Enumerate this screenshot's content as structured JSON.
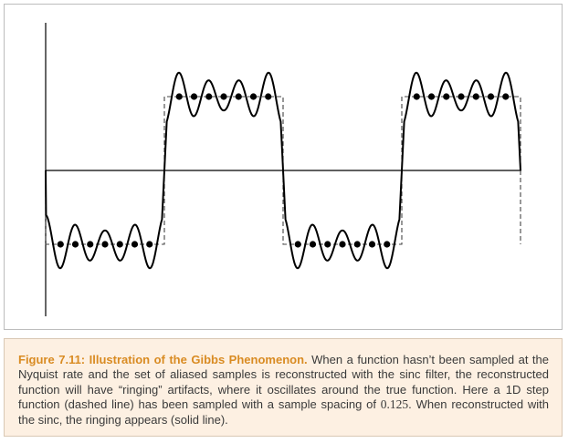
{
  "figure": {
    "description_role": "Gibbs phenomenon illustration: dashed 1D step function, sample dots at spacing 0.125, solid sinc-reconstructed curve with ringing",
    "step_function": {
      "high": 1,
      "low": -1,
      "period": 2,
      "sample_spacing": 0.125,
      "x_range": [
        0,
        4
      ]
    },
    "styles": {
      "axis_color": "#000000",
      "step_dash": "5,3",
      "dot_color": "#000000"
    }
  },
  "caption": {
    "label": "Figure 7.11: Illustration of the Gibbs Phenomenon.",
    "text_1": " When a function hasn’t been sampled at the Nyquist rate and the set of aliased samples is reconstructed with the sinc filter, the reconstructed function will have “ringing” artifacts, where it oscillates around the true function. Here a 1D step function (dashed line) has been sampled with a sample spacing of ",
    "spacing_value": "0.125",
    "text_2": ". When reconstructed with the sinc, the ringing appears (solid line).",
    "label_color": "#d98b22",
    "background_color": "#fdf0e2"
  }
}
